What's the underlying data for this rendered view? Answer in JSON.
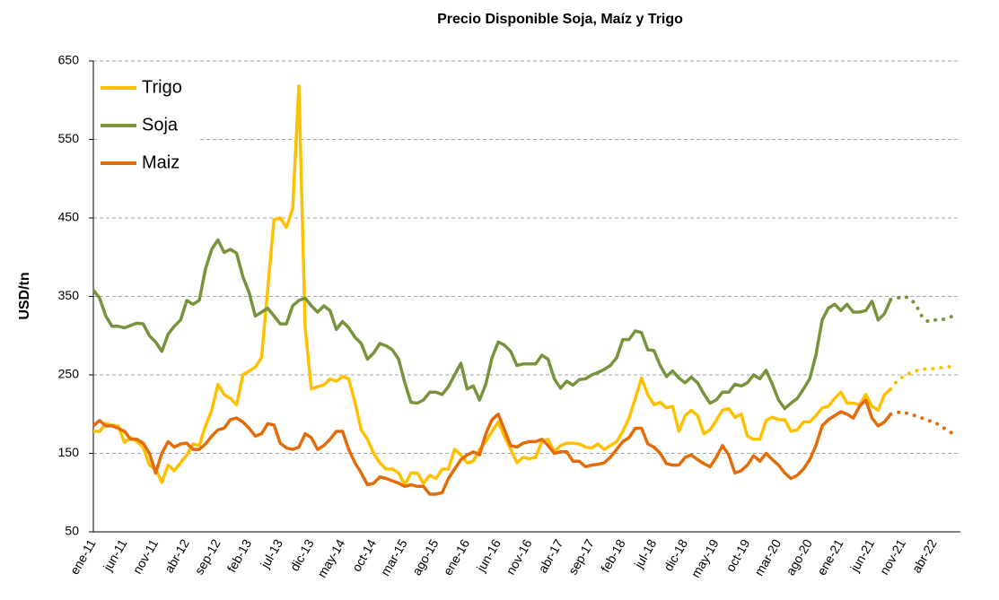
{
  "chart_data": {
    "type": "line",
    "title": "Precio Disponible Soja, Maíz y Trigo",
    "ylabel": "USD/tn",
    "ylim": [
      50,
      650
    ],
    "yticks": [
      50,
      150,
      250,
      350,
      450,
      550,
      650
    ],
    "grid": true,
    "legend": "upper left",
    "categories": [
      "ene-11",
      null,
      null,
      null,
      null,
      "jun-11",
      null,
      null,
      null,
      null,
      "nov-11",
      null,
      null,
      null,
      null,
      "abr-12",
      null,
      null,
      null,
      null,
      "sep-12",
      null,
      null,
      null,
      null,
      "feb-13",
      null,
      null,
      null,
      null,
      "jul-13",
      null,
      null,
      null,
      null,
      "dic-13",
      null,
      null,
      null,
      null,
      "may-14",
      null,
      null,
      null,
      null,
      "oct-14",
      null,
      null,
      null,
      null,
      "mar-15",
      null,
      null,
      null,
      null,
      "ago-15",
      null,
      null,
      null,
      null,
      "ene-16",
      null,
      null,
      null,
      null,
      "jun-16",
      null,
      null,
      null,
      null,
      "nov-16",
      null,
      null,
      null,
      null,
      "abr-17",
      null,
      null,
      null,
      null,
      "sep-17",
      null,
      null,
      null,
      null,
      "feb-18",
      null,
      null,
      null,
      null,
      "jul-18",
      null,
      null,
      null,
      null,
      "dic-18",
      null,
      null,
      null,
      null,
      "may-19",
      null,
      null,
      null,
      null,
      "oct-19",
      null,
      null,
      null,
      null,
      "mar-20",
      null,
      null,
      null,
      null,
      "ago-20",
      null,
      null,
      null,
      null,
      "ene-21",
      null,
      null,
      null,
      null,
      "jun-21",
      null,
      null,
      null,
      null,
      "nov-21",
      null,
      null,
      null,
      null,
      "abr-22",
      null,
      null,
      null
    ],
    "series": [
      {
        "name": "Trigo",
        "color": "#FFC000",
        "values": [
          178,
          178,
          188,
          186,
          185,
          164,
          170,
          165,
          158,
          135,
          130,
          113,
          135,
          128,
          138,
          148,
          162,
          160,
          185,
          205,
          238,
          225,
          220,
          212,
          250,
          255,
          260,
          272,
          360,
          448,
          450,
          438,
          462,
          618,
          310,
          232,
          235,
          237,
          245,
          242,
          248,
          245,
          215,
          180,
          168,
          150,
          138,
          130,
          130,
          125,
          110,
          125,
          125,
          112,
          122,
          118,
          130,
          130,
          155,
          148,
          138,
          140,
          155,
          165,
          178,
          190,
          172,
          155,
          138,
          145,
          143,
          145,
          165,
          168,
          152,
          160,
          163,
          163,
          162,
          158,
          157,
          162,
          155,
          160,
          165,
          178,
          195,
          220,
          246,
          225,
          212,
          215,
          208,
          210,
          178,
          198,
          205,
          198,
          175,
          180,
          192,
          205,
          207,
          196,
          200,
          172,
          168,
          168,
          192,
          196,
          193,
          193,
          178,
          180,
          190,
          190,
          198,
          208,
          210,
          220,
          228,
          214,
          214,
          212,
          225,
          210,
          205,
          225,
          232,
          null,
          null,
          null,
          null,
          null,
          null,
          null,
          null,
          null,
          null
        ],
        "forecast_values": [
          null,
          null,
          null,
          null,
          null,
          null,
          null,
          null,
          null,
          null,
          null,
          null,
          null,
          null,
          null,
          null,
          null,
          null,
          null,
          null,
          null,
          null,
          null,
          null,
          null,
          null,
          null,
          null,
          null,
          null,
          null,
          null,
          null,
          null,
          null,
          null,
          null,
          null,
          null,
          null,
          null,
          null,
          null,
          null,
          null,
          null,
          null,
          null,
          null,
          null,
          null,
          null,
          null,
          null,
          null,
          null,
          null,
          null,
          null,
          null,
          null,
          null,
          null,
          null,
          null,
          null,
          null,
          null,
          null,
          null,
          null,
          null,
          null,
          null,
          null,
          null,
          null,
          null,
          null,
          null,
          null,
          null,
          null,
          null,
          null,
          null,
          null,
          null,
          null,
          null,
          null,
          null,
          null,
          null,
          null,
          null,
          null,
          null,
          null,
          null,
          null,
          null,
          null,
          null,
          null,
          null,
          null,
          null,
          null,
          null,
          null,
          null,
          null,
          null,
          null,
          null,
          null,
          null,
          null,
          null,
          null,
          null,
          null,
          null,
          null,
          null,
          null,
          null,
          null,
          242,
          248,
          252,
          255,
          257,
          258,
          258,
          259,
          260,
          261
        ]
      },
      {
        "name": "Soja",
        "color": "#77933C",
        "values": [
          358,
          348,
          325,
          312,
          312,
          310,
          313,
          316,
          315,
          300,
          292,
          280,
          302,
          312,
          320,
          345,
          340,
          345,
          385,
          410,
          422,
          406,
          410,
          405,
          375,
          355,
          325,
          330,
          335,
          325,
          315,
          315,
          338,
          345,
          348,
          338,
          330,
          338,
          332,
          308,
          318,
          310,
          298,
          290,
          270,
          278,
          290,
          287,
          282,
          270,
          240,
          215,
          214,
          218,
          228,
          228,
          225,
          235,
          250,
          265,
          232,
          236,
          218,
          238,
          272,
          292,
          288,
          280,
          262,
          264,
          264,
          264,
          275,
          270,
          245,
          233,
          242,
          237,
          244,
          245,
          250,
          253,
          257,
          262,
          272,
          295,
          295,
          306,
          304,
          282,
          281,
          262,
          248,
          255,
          246,
          240,
          247,
          240,
          226,
          214,
          218,
          228,
          228,
          238,
          236,
          240,
          250,
          245,
          256,
          238,
          218,
          207,
          214,
          220,
          232,
          245,
          275,
          320,
          335,
          340,
          332,
          340,
          330,
          330,
          332,
          344,
          320,
          328,
          346,
          null,
          null,
          null,
          null,
          null,
          null,
          null,
          null,
          null,
          null
        ],
        "forecast_values": [
          null,
          null,
          null,
          null,
          null,
          null,
          null,
          null,
          null,
          null,
          null,
          null,
          null,
          null,
          null,
          null,
          null,
          null,
          null,
          null,
          null,
          null,
          null,
          null,
          null,
          null,
          null,
          null,
          null,
          null,
          null,
          null,
          null,
          null,
          null,
          null,
          null,
          null,
          null,
          null,
          null,
          null,
          null,
          null,
          null,
          null,
          null,
          null,
          null,
          null,
          null,
          null,
          null,
          null,
          null,
          null,
          null,
          null,
          null,
          null,
          null,
          null,
          null,
          null,
          null,
          null,
          null,
          null,
          null,
          null,
          null,
          null,
          null,
          null,
          null,
          null,
          null,
          null,
          null,
          null,
          null,
          null,
          null,
          null,
          null,
          null,
          null,
          null,
          null,
          null,
          null,
          null,
          null,
          null,
          null,
          null,
          null,
          null,
          null,
          null,
          null,
          null,
          null,
          null,
          null,
          null,
          null,
          null,
          null,
          null,
          null,
          null,
          null,
          null,
          null,
          null,
          null,
          null,
          null,
          null,
          null,
          null,
          null,
          null,
          null,
          null,
          null,
          null,
          null,
          348,
          350,
          348,
          340,
          325,
          318,
          320,
          320,
          322,
          325
        ]
      },
      {
        "name": "Maiz",
        "color": "#E36C09",
        "values": [
          185,
          192,
          185,
          185,
          182,
          178,
          168,
          168,
          163,
          150,
          125,
          150,
          165,
          158,
          162,
          163,
          155,
          155,
          162,
          172,
          180,
          182,
          193,
          195,
          190,
          182,
          172,
          175,
          188,
          186,
          163,
          157,
          155,
          158,
          175,
          170,
          155,
          160,
          168,
          178,
          178,
          155,
          138,
          125,
          110,
          112,
          120,
          118,
          115,
          112,
          108,
          110,
          108,
          108,
          98,
          98,
          100,
          118,
          130,
          142,
          148,
          152,
          148,
          175,
          193,
          200,
          180,
          160,
          158,
          163,
          165,
          165,
          168,
          160,
          150,
          152,
          152,
          140,
          140,
          133,
          135,
          136,
          138,
          145,
          155,
          165,
          170,
          182,
          182,
          162,
          158,
          150,
          137,
          135,
          135,
          145,
          148,
          142,
          137,
          133,
          145,
          160,
          148,
          125,
          128,
          135,
          147,
          140,
          150,
          142,
          135,
          125,
          118,
          122,
          130,
          142,
          160,
          185,
          193,
          198,
          203,
          200,
          195,
          210,
          218,
          195,
          185,
          190,
          200,
          null,
          null,
          null,
          null,
          null,
          null,
          null,
          null,
          null,
          null
        ],
        "forecast_values": [
          null,
          null,
          null,
          null,
          null,
          null,
          null,
          null,
          null,
          null,
          null,
          null,
          null,
          null,
          null,
          null,
          null,
          null,
          null,
          null,
          null,
          null,
          null,
          null,
          null,
          null,
          null,
          null,
          null,
          null,
          null,
          null,
          null,
          null,
          null,
          null,
          null,
          null,
          null,
          null,
          null,
          null,
          null,
          null,
          null,
          null,
          null,
          null,
          null,
          null,
          null,
          null,
          null,
          null,
          null,
          null,
          null,
          null,
          null,
          null,
          null,
          null,
          null,
          null,
          null,
          null,
          null,
          null,
          null,
          null,
          null,
          null,
          null,
          null,
          null,
          null,
          null,
          null,
          null,
          null,
          null,
          null,
          null,
          null,
          null,
          null,
          null,
          null,
          null,
          null,
          null,
          null,
          null,
          null,
          null,
          null,
          null,
          null,
          null,
          null,
          null,
          null,
          null,
          null,
          null,
          null,
          null,
          null,
          null,
          null,
          null,
          null,
          null,
          null,
          null,
          null,
          null,
          null,
          null,
          null,
          null,
          null,
          null,
          null,
          null,
          null,
          null,
          null,
          null,
          202,
          203,
          200,
          198,
          195,
          192,
          190,
          185,
          180,
          175
        ]
      }
    ]
  }
}
